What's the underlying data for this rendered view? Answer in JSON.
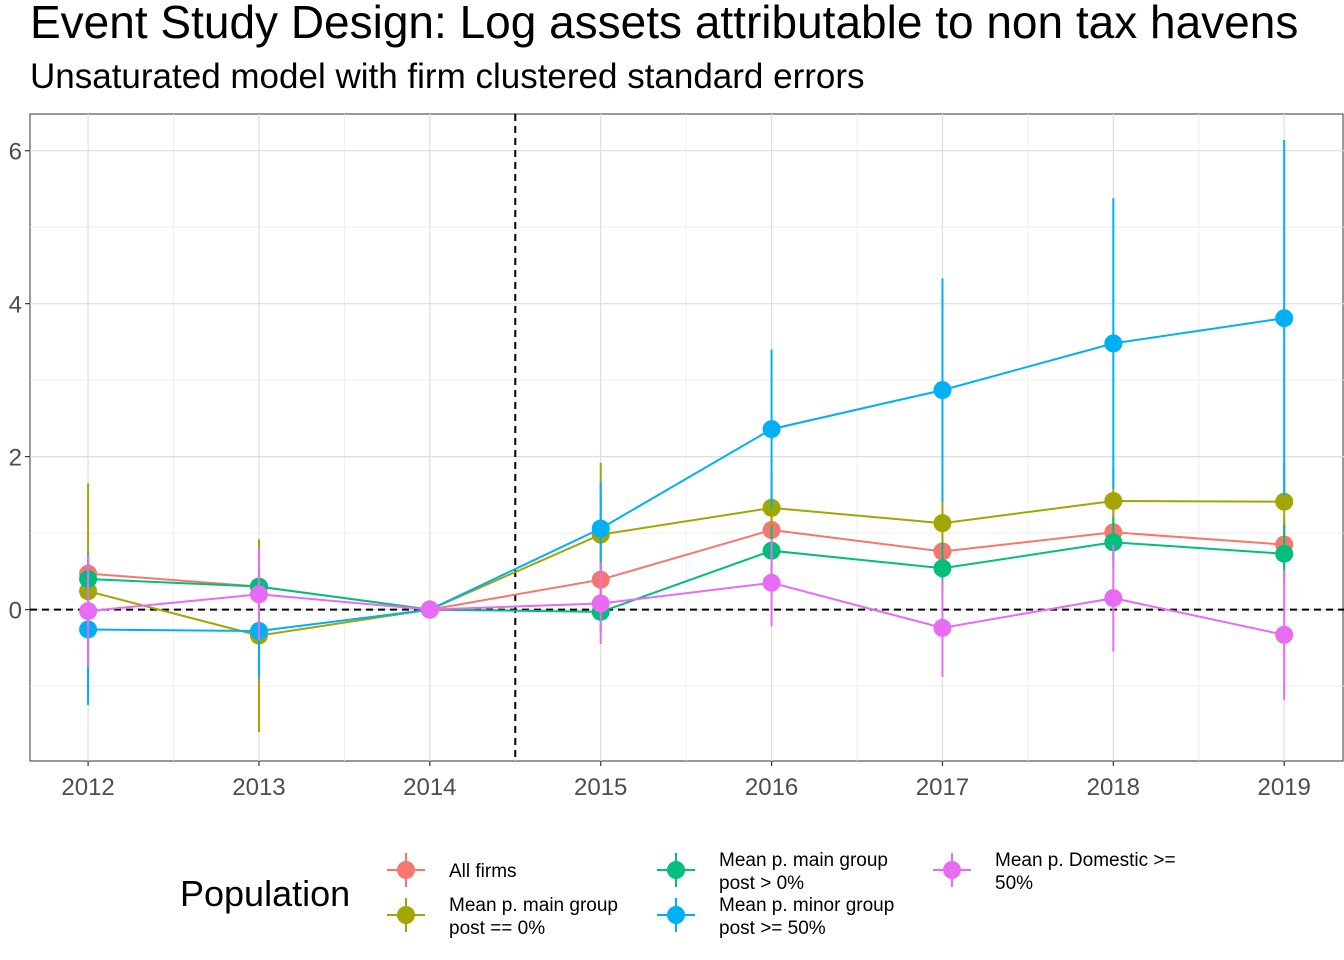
{
  "chart_data": {
    "type": "line",
    "title": "Event Study Design: Log assets attributable to non tax havens",
    "subtitle": "Unsaturated model with firm clustered standard errors",
    "xlabel": "",
    "ylabel": "",
    "x": [
      2012,
      2013,
      2014,
      2015,
      2016,
      2017,
      2018,
      2019
    ],
    "x_tick_labels": [
      "2012",
      "2013",
      "2014",
      "2015",
      "2016",
      "2017",
      "2018",
      "2019"
    ],
    "y_ticks": [
      0,
      2,
      4,
      6
    ],
    "y_tick_labels": [
      "0",
      "2",
      "4",
      "6"
    ],
    "xlim": [
      2011.66,
      2019.35
    ],
    "ylim": [
      -1.98,
      6.48
    ],
    "grid": true,
    "reference_lines": {
      "vertical_x": 2014.5,
      "horizontal_y": 0
    },
    "legend": {
      "title": "Population",
      "position": "bottom"
    },
    "series": [
      {
        "name": "All firms",
        "color": "#F8766D",
        "values": [
          0.47,
          0.3,
          0.0,
          0.39,
          1.04,
          0.76,
          1.01,
          0.85
        ],
        "lower": [
          0.2,
          0.1,
          0.0,
          0.05,
          0.75,
          0.45,
          0.7,
          0.5
        ],
        "upper": [
          0.74,
          0.5,
          0.0,
          0.73,
          1.33,
          1.07,
          1.32,
          1.2
        ]
      },
      {
        "name": "Mean p. main group post == 0%",
        "color": "#A3A500",
        "values": [
          0.24,
          -0.34,
          0.0,
          0.98,
          1.33,
          1.13,
          1.42,
          1.41
        ],
        "lower": [
          -1.17,
          -1.6,
          0.0,
          0.04,
          0.9,
          0.75,
          1.0,
          0.9
        ],
        "upper": [
          1.65,
          0.92,
          0.0,
          1.92,
          1.76,
          1.51,
          1.84,
          1.92
        ]
      },
      {
        "name": "Mean p. main group post > 0%",
        "color": "#00BF7D",
        "values": [
          0.4,
          0.3,
          0.0,
          -0.03,
          0.77,
          0.54,
          0.88,
          0.73
        ],
        "lower": [
          0.15,
          0.05,
          0.0,
          -0.3,
          0.45,
          0.2,
          0.55,
          0.35
        ],
        "upper": [
          0.65,
          0.55,
          0.0,
          0.24,
          1.09,
          0.88,
          1.21,
          1.11
        ]
      },
      {
        "name": "Mean p. minor group post >= 50%",
        "color": "#00B0F6",
        "values": [
          -0.26,
          -0.28,
          0.0,
          1.06,
          2.36,
          2.87,
          3.48,
          3.81
        ],
        "lower": [
          -1.25,
          -0.9,
          0.0,
          0.45,
          1.32,
          1.41,
          1.58,
          1.48
        ],
        "upper": [
          0.73,
          0.34,
          0.0,
          1.67,
          3.4,
          4.33,
          5.38,
          6.14
        ]
      },
      {
        "name": "Mean p. Domestic >= 50%",
        "color": "#E76BF3",
        "values": [
          -0.02,
          0.2,
          0.0,
          0.08,
          0.35,
          -0.24,
          0.15,
          -0.33
        ],
        "lower": [
          -0.75,
          -0.4,
          0.0,
          -0.45,
          -0.22,
          -0.88,
          -0.55,
          -1.18
        ],
        "upper": [
          0.71,
          0.8,
          0.0,
          0.61,
          0.92,
          0.4,
          0.85,
          0.52
        ]
      }
    ]
  },
  "legend_entries": [
    {
      "line1": "All firms",
      "line2": ""
    },
    {
      "line1": "Mean p. main group",
      "line2": "post == 0%"
    },
    {
      "line1": "Mean p. main group",
      "line2": "post > 0%"
    },
    {
      "line1": "Mean p. minor group",
      "line2": "post >= 50%"
    },
    {
      "line1": "Mean p. Domestic >=",
      "line2": "50%"
    }
  ]
}
